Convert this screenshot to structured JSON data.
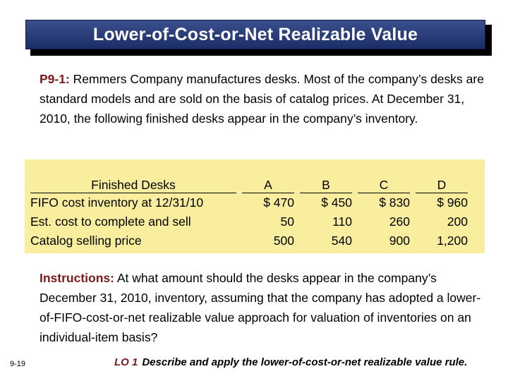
{
  "title": "Lower-of-Cost-or-Net Realizable Value",
  "problem": {
    "label": "P9-1:",
    "text": " Remmers Company manufactures desks. Most of the company’s desks are standard models and are sold on the basis of catalog prices. At December 31, 2010, the following finished desks appear in the company’s inventory."
  },
  "table": {
    "header": "Finished Desks",
    "columns": [
      "A",
      "B",
      "C",
      "D"
    ],
    "rows": [
      {
        "label": "FIFO cost inventory at 12/31/10",
        "values": [
          "$  470",
          "$  450",
          "$  830",
          "$  960"
        ]
      },
      {
        "label": "Est. cost to complete and sell",
        "values": [
          "50",
          "110",
          "260",
          "200"
        ]
      },
      {
        "label": "Catalog selling price",
        "values": [
          "500",
          "540",
          "900",
          "1,200"
        ]
      }
    ]
  },
  "instructions": {
    "label": "Instructions:",
    "text": " At what amount should the desks appear in the company’s December 31, 2010, inventory, assuming that the company has adopted a lower-of-FIFO-cost-or-net realizable value approach for valuation of inventories on an individual-item basis?"
  },
  "footer": {
    "page": "9-19",
    "lo_label": "LO 1",
    "lo_text": "Describe and apply the lower-of-cost-or-net realizable value rule."
  }
}
